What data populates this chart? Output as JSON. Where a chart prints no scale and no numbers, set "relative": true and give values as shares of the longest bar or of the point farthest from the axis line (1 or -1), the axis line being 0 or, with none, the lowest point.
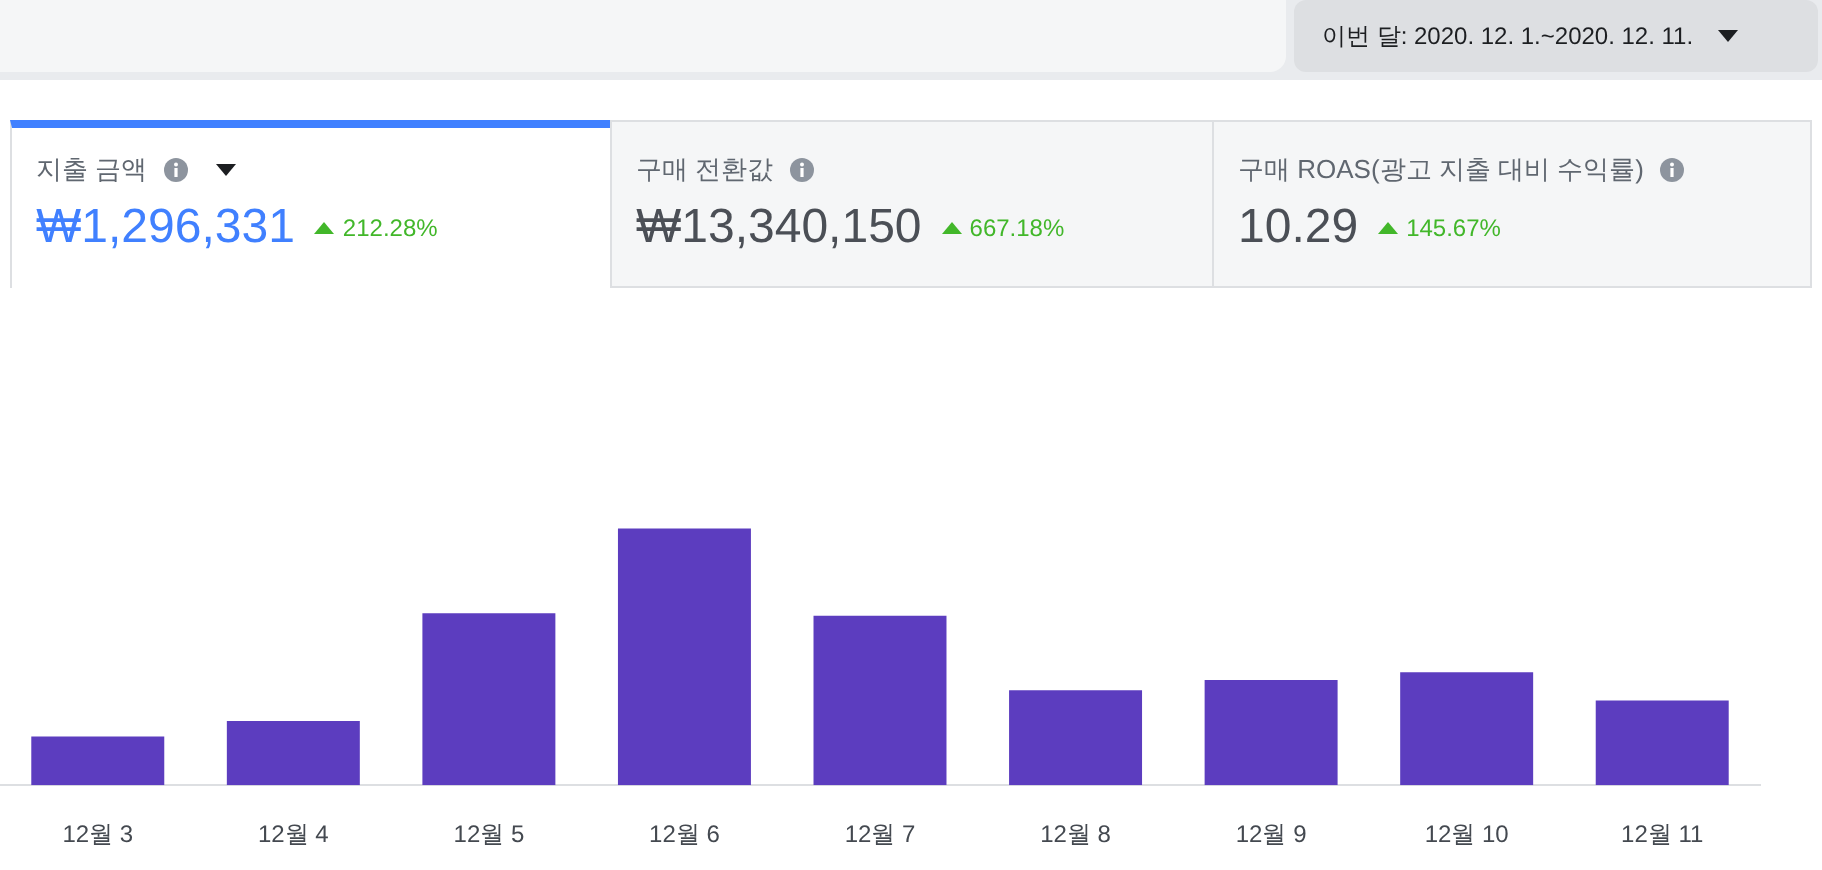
{
  "chart_data": [
    {
      "type": "other",
      "annotations": [
        "이번 달: 2020. 12. 1.~2020. 12. 11.",
        "지출 금액",
        "₩1,296,331",
        "212.28%",
        "구매 전환값",
        "₩13,340,150",
        "667.18%",
        "구매 ROAS(광고 지출 대비 수익률)",
        "10.29",
        "145.67%"
      ]
    },
    {
      "type": "bar",
      "relative": true,
      "categories": [
        "12월 3",
        "12월 4",
        "12월 5",
        "12월 6",
        "12월 7",
        "12월 8",
        "12월 9",
        "12월 10",
        "12월 11"
      ],
      "values": [
        0.19,
        0.25,
        0.67,
        1,
        0.66,
        0.37,
        0.41,
        0.44,
        0.33
      ],
      "color": "#5c3dbf",
      "legend": false
    }
  ]
}
